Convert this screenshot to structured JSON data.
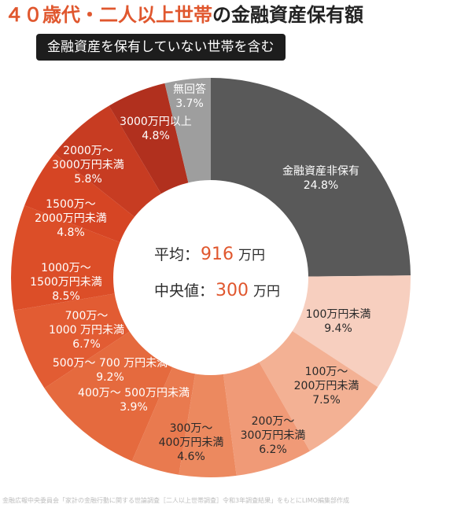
{
  "title": {
    "accent": "４０歳代・二人以上世帯",
    "rest": "の金融資産保有額"
  },
  "subtitle": "金融資産を保有していない世帯を含む",
  "center": {
    "avg_label": "平均",
    "avg_value": "916",
    "median_label": "中央値",
    "median_value": "300",
    "unit": "万円"
  },
  "footer": "金融広報中央委員会「家計の金融行動に関する世論調査［二人以上世帯調査］令和3年調査結果」をもとにLIMO編集部作成",
  "chart_data": {
    "type": "pie",
    "donut": true,
    "title": "４０歳代・二人以上世帯の金融資産保有額",
    "subtitle": "金融資産を保有していない世帯を含む",
    "slices": [
      {
        "label": "金融資産非保有",
        "value": 24.8,
        "display": "24.8%",
        "color": "#595959",
        "text_color": "#ffffff"
      },
      {
        "label": "100万円未満",
        "value": 9.4,
        "display": "9.4%",
        "color": "#f7cfbf",
        "text_color": "#2a2a2a"
      },
      {
        "label": "100万〜200万円未満",
        "value": 7.5,
        "display": "7.5%",
        "color": "#f3b194",
        "text_color": "#2a2a2a"
      },
      {
        "label": "200万〜300万円未満",
        "value": 6.2,
        "display": "6.2%",
        "color": "#f09a77",
        "text_color": "#2a2a2a"
      },
      {
        "label": "300万〜400万円未満",
        "value": 4.6,
        "display": "4.6%",
        "color": "#ec895f",
        "text_color": "#2a2a2a"
      },
      {
        "label": "400万〜 500万円未満",
        "value": 3.9,
        "display": "3.9%",
        "color": "#e97a4f",
        "text_color": "#ffffff"
      },
      {
        "label": "500万〜 700 万円未満",
        "value": 9.2,
        "display": "9.2%",
        "color": "#e56a3e",
        "text_color": "#ffffff"
      },
      {
        "label": "700万〜1000 万円未満",
        "value": 6.7,
        "display": "6.7%",
        "color": "#e25c33",
        "text_color": "#ffffff"
      },
      {
        "label": "1000万〜1500万円未満",
        "value": 8.5,
        "display": "8.5%",
        "color": "#dc4e28",
        "text_color": "#ffffff"
      },
      {
        "label": "1500万〜2000万円未満",
        "value": 4.8,
        "display": "4.8%",
        "color": "#d64524",
        "text_color": "#ffffff"
      },
      {
        "label": "2000万〜3000万円未満",
        "value": 5.8,
        "display": "5.8%",
        "color": "#c73c22",
        "text_color": "#ffffff"
      },
      {
        "label": "3000万円以上",
        "value": 4.8,
        "display": "4.8%",
        "color": "#b1301e",
        "text_color": "#ffffff"
      },
      {
        "label": "無回答",
        "value": 3.7,
        "display": "3.7%",
        "color": "#9e9e9e",
        "text_color": "#ffffff"
      }
    ],
    "accent_color": "#e0572e"
  }
}
